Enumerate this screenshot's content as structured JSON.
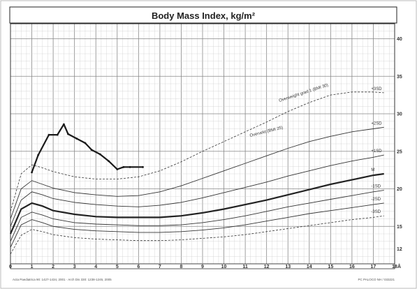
{
  "chart_data": {
    "type": "line",
    "title": "Body Mass Index, kg/m²",
    "x_unit": "Å",
    "xlim": [
      0,
      18
    ],
    "ylim": [
      10,
      42
    ],
    "x_ticks": [
      "0",
      "1",
      "2",
      "3",
      "4",
      "5",
      "6",
      "7",
      "8",
      "9",
      "10",
      "11",
      "12",
      "13",
      "14",
      "15",
      "16",
      "17",
      "18"
    ],
    "y_ticks": [
      12,
      15,
      20,
      25,
      30,
      35,
      40
    ],
    "grid": true,
    "percentile_curves": [
      {
        "name": "+3SD",
        "style": "dashed",
        "x": [
          0,
          0.5,
          1,
          1.5,
          2,
          3,
          4,
          5,
          6,
          7,
          8,
          9,
          10,
          11,
          12,
          13,
          14,
          15,
          16,
          17,
          17.5
        ],
        "y": [
          17,
          22,
          23.2,
          22.8,
          22.3,
          21.6,
          21.3,
          21.3,
          21.6,
          22.4,
          23.6,
          25,
          26.3,
          27.6,
          28.9,
          30.3,
          31.5,
          32.5,
          32.9,
          32.9,
          32.8
        ]
      },
      {
        "name": "+2SD",
        "style": "solid",
        "x": [
          0,
          0.5,
          1,
          1.5,
          2,
          3,
          4,
          5,
          6,
          7,
          8,
          9,
          10,
          11,
          12,
          13,
          14,
          15,
          16,
          17,
          17.5
        ],
        "y": [
          16,
          20,
          21.1,
          20.6,
          20.1,
          19.5,
          19.2,
          19,
          19.1,
          19.6,
          20.4,
          21.4,
          22.4,
          23.4,
          24.4,
          25.4,
          26.3,
          27,
          27.6,
          28,
          28.2
        ]
      },
      {
        "name": "+1SD",
        "style": "solid",
        "x": [
          0,
          0.5,
          1,
          1.5,
          2,
          3,
          4,
          5,
          6,
          7,
          8,
          9,
          10,
          11,
          12,
          13,
          14,
          15,
          16,
          17,
          17.5
        ],
        "y": [
          15,
          18.5,
          19.6,
          19.2,
          18.7,
          18.2,
          17.9,
          17.7,
          17.6,
          17.8,
          18.2,
          18.8,
          19.5,
          20.2,
          20.9,
          21.7,
          22.4,
          23.1,
          23.7,
          24.2,
          24.5
        ]
      },
      {
        "name": "M",
        "style": "bold",
        "x": [
          0,
          0.5,
          1,
          1.5,
          2,
          3,
          4,
          5,
          6,
          7,
          8,
          9,
          10,
          11,
          12,
          13,
          14,
          15,
          16,
          17,
          17.5
        ],
        "y": [
          14,
          17.3,
          18.1,
          17.7,
          17.1,
          16.6,
          16.3,
          16.2,
          16.2,
          16.2,
          16.4,
          16.8,
          17.3,
          17.9,
          18.5,
          19.2,
          19.9,
          20.6,
          21.2,
          21.8,
          22
        ]
      },
      {
        "name": "-1SD",
        "style": "solid",
        "x": [
          0,
          0.5,
          1,
          1.5,
          2,
          3,
          4,
          5,
          6,
          7,
          8,
          9,
          10,
          11,
          12,
          13,
          14,
          15,
          16,
          17,
          17.5
        ],
        "y": [
          13,
          16.2,
          16.9,
          16.5,
          16,
          15.5,
          15.3,
          15.2,
          15.1,
          15.1,
          15.2,
          15.5,
          15.9,
          16.4,
          17,
          17.6,
          18.1,
          18.6,
          19.1,
          19.6,
          19.8
        ]
      },
      {
        "name": "-2SD",
        "style": "solid",
        "x": [
          0,
          0.5,
          1,
          1.5,
          2,
          3,
          4,
          5,
          6,
          7,
          8,
          9,
          10,
          11,
          12,
          13,
          14,
          15,
          16,
          17,
          17.5
        ],
        "y": [
          12.2,
          15.2,
          15.9,
          15.5,
          15,
          14.6,
          14.4,
          14.3,
          14.2,
          14.2,
          14.3,
          14.5,
          14.8,
          15.2,
          15.7,
          16.2,
          16.7,
          17.1,
          17.5,
          17.9,
          18.1
        ]
      },
      {
        "name": "-3SD",
        "style": "dashed",
        "x": [
          0,
          0.5,
          1,
          1.5,
          2,
          3,
          4,
          5,
          6,
          7,
          8,
          9,
          10,
          11,
          12,
          13,
          14,
          15,
          16,
          17,
          17.5
        ],
        "y": [
          11.3,
          13.8,
          14.6,
          14.3,
          13.9,
          13.5,
          13.3,
          13.2,
          13.1,
          13.1,
          13.2,
          13.4,
          13.6,
          13.9,
          14.3,
          14.7,
          15.1,
          15.5,
          15.9,
          16.2,
          16.4
        ]
      }
    ],
    "curve_labels": [
      "+3SD",
      "+2SD",
      "+1SD",
      "M",
      "-1SD",
      "-2SD",
      "-3SD"
    ],
    "band_labels": [
      "Overweight grad 1 (BMI 30)",
      "Overvekt (BMI 25)"
    ],
    "patient_series": {
      "style": "bold",
      "x": [
        1,
        1.3,
        1.8,
        2.2,
        2.5,
        2.7,
        3.1,
        3.5,
        3.8,
        4.2,
        4.6,
        5.0,
        5.3,
        5.6,
        6.2
      ],
      "y": [
        22.2,
        24.5,
        27.2,
        27.2,
        28.6,
        27.3,
        26.7,
        26.1,
        25.2,
        24.6,
        23.7,
        22.6,
        22.9,
        22.9,
        22.9
      ]
    }
  },
  "footer": {
    "left": "Acta Paediatrica 90: 1427-1434, 2001   ·   Arch Dis 330: 1238-1245, 2005",
    "right": "PC PALOCO NH / 033221"
  }
}
